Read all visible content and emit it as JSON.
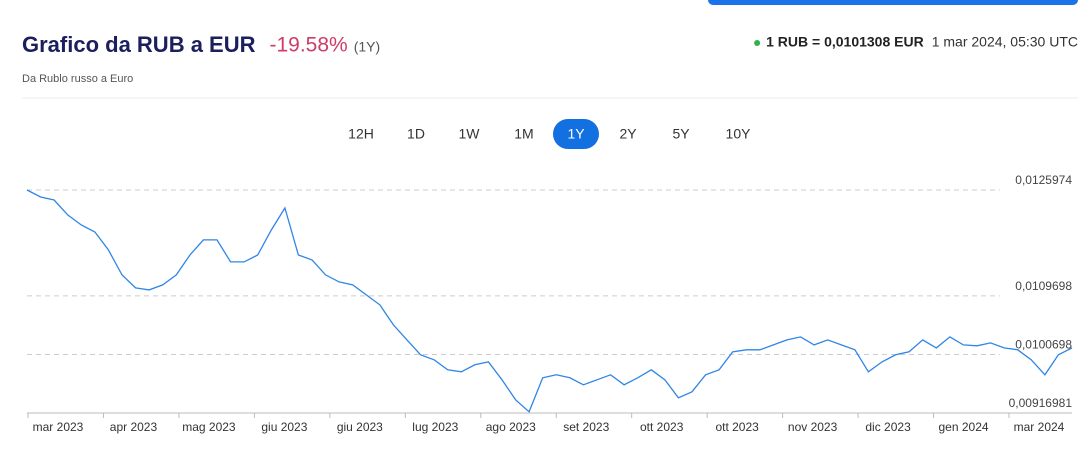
{
  "header": {
    "title": "Grafico da RUB a EUR",
    "change": "-19.58%",
    "period": "(1Y)",
    "subtitle": "Da Rublo russo a Euro"
  },
  "rate": {
    "text": "1 RUB = 0,0101308 EUR",
    "timestamp": "1 mar 2024, 05:30 UTC"
  },
  "periods": {
    "options": [
      "12H",
      "1D",
      "1W",
      "1M",
      "1Y",
      "2Y",
      "5Y",
      "10Y"
    ],
    "active": "1Y"
  },
  "chart_data": {
    "type": "line",
    "x_axis_labels": [
      "mar 2023",
      "apr 2023",
      "mag 2023",
      "giu 2023",
      "giu 2023",
      "lug 2023",
      "ago 2023",
      "set 2023",
      "ott 2023",
      "ott 2023",
      "nov 2023",
      "dic 2023",
      "gen 2024",
      "mar 2024"
    ],
    "series": [
      {
        "color": "#2f86e6",
        "values": [
          0.012597,
          0.01249,
          0.012444,
          0.012214,
          0.01206,
          0.011952,
          0.011676,
          0.011292,
          0.011092,
          0.011062,
          0.011139,
          0.011292,
          0.011599,
          0.01183,
          0.01183,
          0.011492,
          0.011492,
          0.011599,
          0.011983,
          0.012321,
          0.011599,
          0.011523,
          0.011292,
          0.011185,
          0.011139,
          0.010985,
          0.010831,
          0.010524,
          0.010294,
          0.010064,
          0.009987,
          0.009834,
          0.009803,
          0.00991,
          0.009956,
          0.00968,
          0.009373,
          0.009189,
          0.009711,
          0.009757,
          0.009711,
          0.009603,
          0.00968,
          0.009757,
          0.009603,
          0.009711,
          0.009834,
          0.00968,
          0.009404,
          0.009496,
          0.009757,
          0.009834,
          0.01011,
          0.010141,
          0.010141,
          0.010217,
          0.010294,
          0.01034,
          0.010217,
          0.010294,
          0.010217,
          0.010141,
          0.009803,
          0.009956,
          0.010064,
          0.01011,
          0.010294,
          0.010171,
          0.01034,
          0.010217,
          0.010202,
          0.010248,
          0.010171,
          0.010141,
          0.009987,
          0.009757,
          0.010064,
          0.010171
        ]
      }
    ],
    "ylim": [
      0.00916981,
      0.0125974
    ],
    "yticks": [
      {
        "value": 0.00916981,
        "label": "0,00916981"
      },
      {
        "value": 0.0100698,
        "label": "0,0100698"
      },
      {
        "value": 0.0109698,
        "label": "0,0109698"
      },
      {
        "value": 0.0125974,
        "label": "0,0125974"
      }
    ],
    "grid": true
  }
}
